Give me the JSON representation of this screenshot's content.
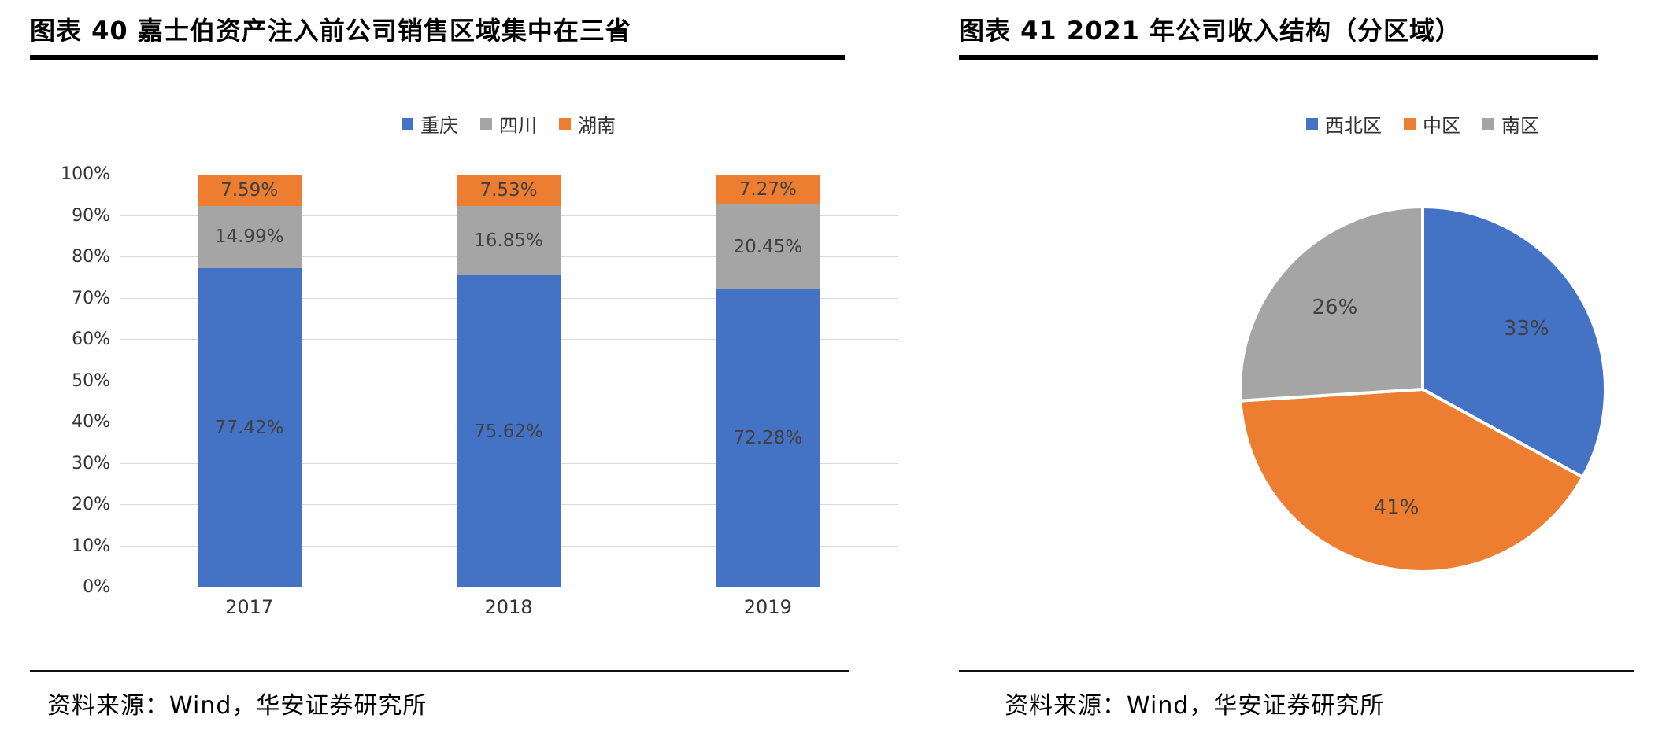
{
  "page": {
    "background": "#ffffff"
  },
  "left_panel": {
    "title": "图表 40  嘉士伯资产注入前公司销售区域集中在三省",
    "source": "资料来源：Wind，华安证券研究所"
  },
  "right_panel": {
    "title": "图表 41 2021 年公司收入结构（分区域）",
    "source": "资料来源：Wind，华安证券研究所"
  },
  "chart_data": [
    {
      "type": "bar",
      "stacked": true,
      "title": "图表 40  嘉士伯资产注入前公司销售区域集中在三省",
      "categories": [
        "2017",
        "2018",
        "2019"
      ],
      "series": [
        {
          "name": "重庆",
          "color": "#4472C4",
          "values": [
            77.42,
            75.62,
            72.28
          ]
        },
        {
          "name": "四川",
          "color": "#A5A5A5",
          "values": [
            14.99,
            16.85,
            20.45
          ]
        },
        {
          "name": "湖南",
          "color": "#ED7D31",
          "values": [
            7.59,
            7.53,
            7.27
          ]
        }
      ],
      "ylim": [
        0,
        100
      ],
      "ytick_step": 10,
      "ytick_suffix": "%",
      "value_label_suffix": "%",
      "legend_position": "top",
      "grid": true
    },
    {
      "type": "pie",
      "title": "图表 41 2021 年公司收入结构（分区域）",
      "labels": [
        "西北区",
        "中区",
        "南区"
      ],
      "values": [
        33,
        41,
        26
      ],
      "colors": [
        "#4472C4",
        "#ED7D31",
        "#A5A5A5"
      ],
      "value_label_suffix": "%",
      "legend_position": "top",
      "start_angle_deg": -90,
      "direction": "clockwise"
    }
  ]
}
